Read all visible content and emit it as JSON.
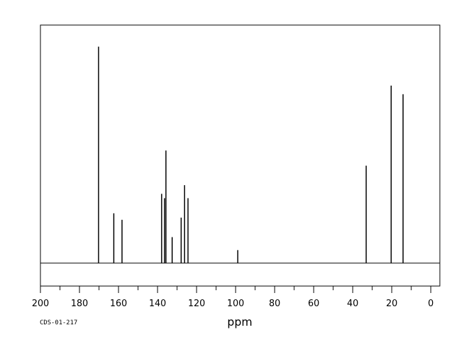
{
  "chart_data": {
    "type": "line",
    "subtype": "nmr-13c-stick-spectrum",
    "xlabel": "ppm",
    "ylabel": "",
    "title": "",
    "xlim": [
      200,
      -5
    ],
    "x_reversed": true,
    "x_ticks": [
      200,
      180,
      160,
      140,
      120,
      100,
      80,
      60,
      40,
      20,
      0
    ],
    "x_tick_labels": [
      "200",
      "180",
      "160",
      "140",
      "120",
      "100",
      "80",
      "60",
      "40",
      "20",
      "0"
    ],
    "ylim": [
      0,
      1
    ],
    "grid": false,
    "legend": "none",
    "peaks": [
      {
        "ppm": 170.2,
        "intensity": 1.0
      },
      {
        "ppm": 162.4,
        "intensity": 0.23
      },
      {
        "ppm": 158.2,
        "intensity": 0.2
      },
      {
        "ppm": 137.9,
        "intensity": 0.32
      },
      {
        "ppm": 136.4,
        "intensity": 0.3
      },
      {
        "ppm": 135.7,
        "intensity": 0.52
      },
      {
        "ppm": 132.5,
        "intensity": 0.12
      },
      {
        "ppm": 127.9,
        "intensity": 0.21
      },
      {
        "ppm": 126.2,
        "intensity": 0.36
      },
      {
        "ppm": 124.4,
        "intensity": 0.3
      },
      {
        "ppm": 98.9,
        "intensity": 0.06
      },
      {
        "ppm": 33.1,
        "intensity": 0.45
      },
      {
        "ppm": 20.3,
        "intensity": 0.82
      },
      {
        "ppm": 14.2,
        "intensity": 0.78
      }
    ],
    "spectrum_code": "CDS-01-217"
  }
}
